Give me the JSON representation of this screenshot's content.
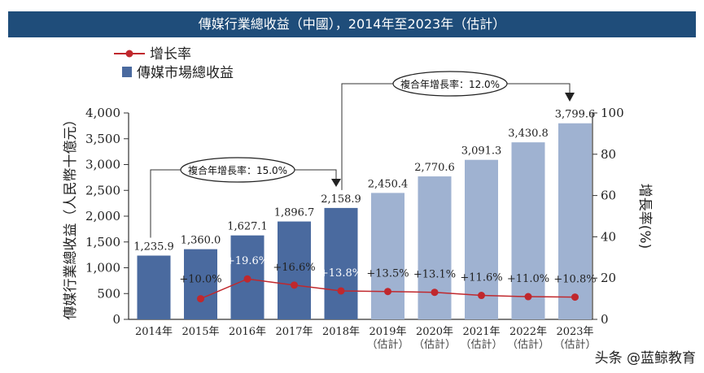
{
  "chart_data": {
    "type": "bar",
    "title": "傳媒行業總收益（中國），2014年至2023年（估計）",
    "categories": [
      "2014年",
      "2015年",
      "2016年",
      "2017年",
      "2018年",
      "2019年",
      "2020年",
      "2021年",
      "2022年",
      "2023年"
    ],
    "category_notes": [
      "",
      "",
      "",
      "",
      "",
      "（估計）",
      "（估計）",
      "（估計）",
      "（估計）",
      "（估計）"
    ],
    "ylabel": "傳媒行業總收益（人民幣十億元）",
    "y2label": "增長率(%)",
    "ylim": [
      0,
      4000
    ],
    "yticks": [
      "0",
      "500",
      "1,000",
      "1,500",
      "2,000",
      "2,500",
      "3,000",
      "3,500",
      "4,000"
    ],
    "y2lim": [
      0,
      100
    ],
    "y2ticks": [
      "0",
      "20",
      "40",
      "60",
      "80",
      "100"
    ],
    "legend": {
      "placement": "top-left"
    },
    "series": [
      {
        "name": "傳媒市場總收益",
        "type": "bar",
        "axis": "left",
        "values": [
          1235.9,
          1360.0,
          1627.1,
          1896.7,
          2158.9,
          2450.4,
          2770.6,
          3091.3,
          3430.8,
          3799.6
        ],
        "labels": [
          "1,235.9",
          "1,360.0",
          "1,627.1",
          "1,896.7",
          "2,158.9",
          "2,450.4",
          "2,770.6",
          "3,091.3",
          "3,430.8",
          "3,799.6"
        ],
        "colors": {
          "actual": "#4a6a9f",
          "estimate": "#9fb2d1"
        }
      },
      {
        "name": "增长率",
        "type": "line",
        "axis": "right",
        "color": "#c0282d",
        "values": [
          null,
          10.0,
          19.6,
          16.6,
          13.8,
          13.5,
          13.1,
          11.6,
          11.0,
          10.8
        ],
        "labels": [
          "",
          "+10.0%",
          "+19.6%",
          "+16.6%",
          "+13.8%",
          "+13.5%",
          "+13.1%",
          "+11.6%",
          "+11.0%",
          "+10.8%"
        ]
      }
    ],
    "annotations": [
      {
        "text": "複合年增長率：15.0%",
        "from": "2014年",
        "to": "2018年"
      },
      {
        "text": "複合年增長率：12.0%",
        "from": "2018年",
        "to": "2023年"
      }
    ]
  },
  "watermark": "头条 @蓝鲸教育"
}
